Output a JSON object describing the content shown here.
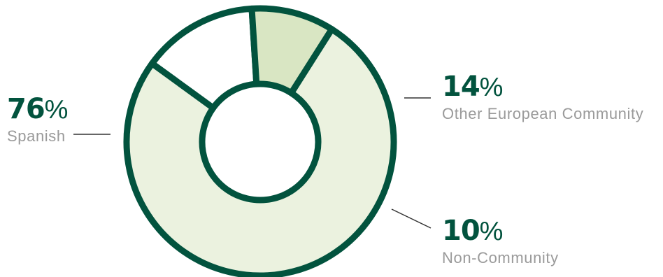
{
  "chart_data": {
    "type": "pie",
    "donut": true,
    "slices": [
      {
        "label": "Spanish",
        "value": 76,
        "fill": "#ebf2df"
      },
      {
        "label": "Other European Community",
        "value": 14,
        "fill": "#ffffff"
      },
      {
        "label": "Non-Community",
        "value": 10,
        "fill": "#d9e6c3"
      }
    ],
    "percent_sign": "%",
    "title": "",
    "legend": "none"
  },
  "colors": {
    "stroke": "#02533e",
    "label_text": "#9a9a9a",
    "leader_line": "#333333"
  }
}
